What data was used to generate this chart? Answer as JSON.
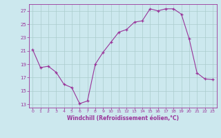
{
  "x": [
    0,
    1,
    2,
    3,
    4,
    5,
    6,
    7,
    8,
    9,
    10,
    11,
    12,
    13,
    14,
    15,
    16,
    17,
    18,
    19,
    20,
    21,
    22,
    23
  ],
  "y": [
    21.2,
    18.5,
    18.7,
    17.8,
    16.0,
    15.5,
    13.1,
    13.5,
    19.0,
    20.8,
    22.3,
    23.8,
    24.2,
    25.3,
    25.5,
    27.3,
    27.0,
    27.3,
    27.3,
    26.5,
    22.8,
    17.7,
    16.8,
    16.7
  ],
  "line_color": "#993399",
  "marker": "+",
  "bg_color": "#cce8ee",
  "grid_color": "#aacccc",
  "xlabel": "Windchill (Refroidissement éolien,°C)",
  "xlabel_color": "#993399",
  "tick_color": "#993399",
  "ylim": [
    12.5,
    28
  ],
  "yticks": [
    13,
    15,
    17,
    19,
    21,
    23,
    25,
    27
  ],
  "xticks": [
    0,
    1,
    2,
    3,
    4,
    5,
    6,
    7,
    8,
    9,
    10,
    11,
    12,
    13,
    14,
    15,
    16,
    17,
    18,
    19,
    20,
    21,
    22,
    23
  ],
  "figwidth": 3.2,
  "figheight": 2.0,
  "dpi": 100
}
